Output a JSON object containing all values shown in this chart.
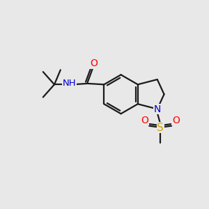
{
  "bg_color": "#e8e8e8",
  "bond_color": "#1a1a1a",
  "bond_width": 1.6,
  "atom_colors": {
    "O": "#ff0000",
    "N": "#0000cc",
    "S": "#ccaa00",
    "C": "#1a1a1a"
  },
  "font_size": 10,
  "fig_size": [
    3.0,
    3.0
  ],
  "dpi": 100
}
